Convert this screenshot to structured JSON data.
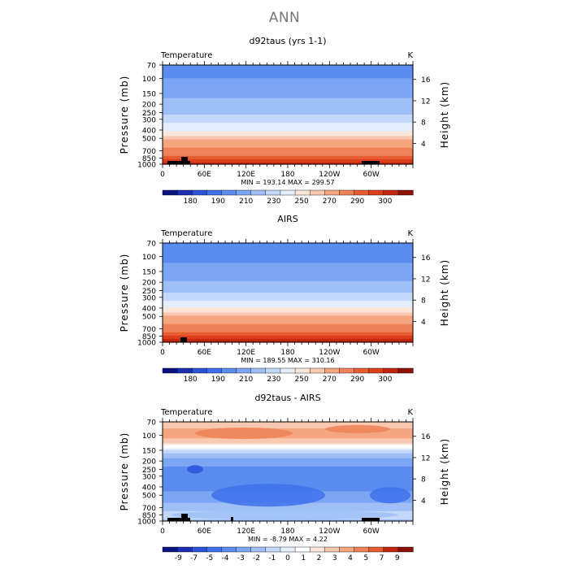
{
  "figure_title": "ANN",
  "colors": {
    "abs_bands": [
      "#0a1480",
      "#1a2fb0",
      "#2d52d9",
      "#3f71ea",
      "#5a8cef",
      "#7ca6f3",
      "#9fbff6",
      "#c3d8fa",
      "#e4eefc",
      "#fbe6da",
      "#f8c9b0",
      "#f4a680",
      "#ef8258",
      "#e85c32",
      "#dc3e1a",
      "#c2260f",
      "#8c1206"
    ],
    "diff_bands": [
      "#0a1480",
      "#1a2fb0",
      "#2d52d9",
      "#3f71ea",
      "#5a8cef",
      "#7ca6f3",
      "#9fbff6",
      "#c3d8fa",
      "#e4eefc",
      "#ffffff",
      "#fbe6da",
      "#f8c9b0",
      "#f4a680",
      "#ef8258",
      "#e85c32",
      "#c2260f",
      "#8c1206"
    ],
    "topography": "#000000"
  },
  "chart_data": [
    {
      "type": "contour",
      "title": "d92taus (yrs 1-1)",
      "variable_label": "Temperature",
      "units": "K",
      "ylabel": "Pressure (mb)",
      "ylabel_right": "Height (km)",
      "pressure_ticks": [
        "70",
        "100",
        "150",
        "200",
        "250",
        "300",
        "400",
        "500",
        "700",
        "850",
        "1000"
      ],
      "height_ticks": [
        "16",
        "12",
        "8",
        "4"
      ],
      "x_ticks": [
        "0",
        "60E",
        "120E",
        "180",
        "120W",
        "60W"
      ],
      "stats": "MIN = 193.14   MAX = 299.57",
      "colorbar_labels": [
        "180",
        "190",
        "210",
        "230",
        "250",
        "270",
        "290",
        "300"
      ],
      "levels_by_pressure": [
        [
          70,
          205
        ],
        [
          100,
          210
        ],
        [
          150,
          217
        ],
        [
          200,
          223
        ],
        [
          250,
          228
        ],
        [
          300,
          235
        ],
        [
          400,
          248
        ],
        [
          500,
          258
        ],
        [
          700,
          273
        ],
        [
          850,
          283
        ],
        [
          1000,
          292
        ]
      ]
    },
    {
      "type": "contour",
      "title": "AIRS",
      "variable_label": "Temperature",
      "units": "K",
      "ylabel": "Pressure (mb)",
      "ylabel_right": "Height (km)",
      "pressure_ticks": [
        "70",
        "100",
        "150",
        "200",
        "250",
        "300",
        "400",
        "500",
        "700",
        "850",
        "1000"
      ],
      "height_ticks": [
        "16",
        "12",
        "8",
        "4"
      ],
      "x_ticks": [
        "0",
        "60E",
        "120E",
        "180",
        "120W",
        "60W"
      ],
      "stats": "MIN = 189.55   MAX = 310.16",
      "colorbar_labels": [
        "180",
        "190",
        "210",
        "230",
        "250",
        "270",
        "290",
        "300"
      ],
      "levels_by_pressure": [
        [
          70,
          203
        ],
        [
          100,
          207
        ],
        [
          150,
          214
        ],
        [
          200,
          221
        ],
        [
          250,
          228
        ],
        [
          300,
          236
        ],
        [
          400,
          250
        ],
        [
          500,
          260
        ],
        [
          700,
          275
        ],
        [
          850,
          285
        ],
        [
          1000,
          295
        ]
      ]
    },
    {
      "type": "contour",
      "title": "d92taus - AIRS",
      "variable_label": "Temperature",
      "units": "K",
      "ylabel": "Pressure (mb)",
      "ylabel_right": "Height (km)",
      "pressure_ticks": [
        "70",
        "100",
        "150",
        "200",
        "250",
        "300",
        "400",
        "500",
        "700",
        "850",
        "1000"
      ],
      "height_ticks": [
        "16",
        "12",
        "8",
        "4"
      ],
      "x_ticks": [
        "0",
        "60E",
        "120E",
        "180",
        "120W",
        "60W"
      ],
      "stats": "MIN =  -8.79   MAX =   4.22",
      "colorbar_labels": [
        "-9",
        "-7",
        "-5",
        "-4",
        "-3",
        "-2",
        "-1",
        "0",
        "1",
        "2",
        "3",
        "4",
        "5",
        "7",
        "9"
      ],
      "levels_by_pressure": [
        [
          70,
          1.5
        ],
        [
          100,
          2.5
        ],
        [
          150,
          -0.5
        ],
        [
          200,
          -2.5
        ],
        [
          250,
          -3.2
        ],
        [
          300,
          -3.5
        ],
        [
          400,
          -3.3
        ],
        [
          500,
          -2.8
        ],
        [
          700,
          -1.5
        ],
        [
          850,
          -0.5
        ],
        [
          1000,
          -1.2
        ]
      ]
    }
  ]
}
